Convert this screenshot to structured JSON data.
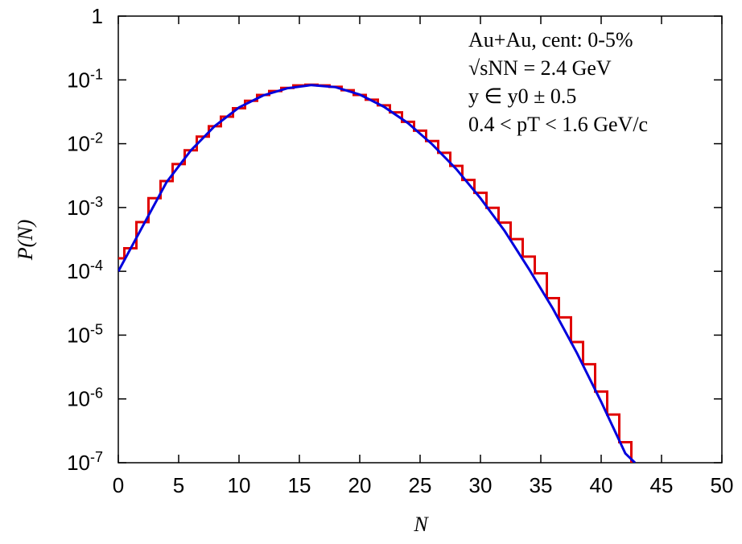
{
  "chart_data": {
    "type": "histogram",
    "xlabel": "N",
    "ylabel": "P(N)",
    "annotations": [
      "Au+Au, cent: 0-5%",
      "√sNN = 2.4 GeV",
      "y ∈ y0 ± 0.5",
      "0.4 < pT < 1.6 GeV/c"
    ],
    "xlim": [
      0,
      50
    ],
    "xticks": [
      0,
      5,
      10,
      15,
      20,
      25,
      30,
      35,
      40,
      45,
      50
    ],
    "ylim": [
      1e-07,
      1
    ],
    "log_y": true,
    "yticks": [
      1,
      {
        "value": 0.1,
        "label": "10",
        "exponent": "-1"
      },
      {
        "value": 0.01,
        "label": "10",
        "exponent": "-2"
      },
      {
        "value": 0.001,
        "label": "10",
        "exponent": "-3"
      },
      {
        "value": 0.0001,
        "label": "10",
        "exponent": "-4"
      },
      {
        "value": 1e-05,
        "label": "10",
        "exponent": "-5"
      },
      {
        "value": 1e-06,
        "label": "10",
        "exponent": "-6"
      },
      {
        "value": 1e-07,
        "label": "10",
        "exponent": "-7"
      }
    ],
    "histogram": {
      "color": "#e00000",
      "bins": [
        -0.5,
        0.5,
        1.5,
        2.5,
        3.5,
        4.5,
        5.5,
        6.5,
        7.5,
        8.5,
        9.5,
        10.5,
        11.5,
        12.5,
        13.5,
        14.5,
        15.5,
        16.5,
        17.5,
        18.5,
        19.5,
        20.5,
        21.5,
        22.5,
        23.5,
        24.5,
        25.5,
        26.5,
        27.5,
        28.5,
        29.5,
        30.5,
        31.5,
        32.5,
        33.5,
        34.5,
        35.5,
        36.5,
        37.5,
        38.5,
        39.5,
        40.5,
        41.5,
        42.5
      ],
      "values": [
        0.00016,
        0.00023,
        0.00059,
        0.0014,
        0.0026,
        0.0048,
        0.0079,
        0.0129,
        0.0188,
        0.0265,
        0.036,
        0.047,
        0.058,
        0.067,
        0.075,
        0.082,
        0.084,
        0.082,
        0.078,
        0.069,
        0.058,
        0.049,
        0.04,
        0.031,
        0.022,
        0.016,
        0.011,
        0.0072,
        0.0045,
        0.0027,
        0.0017,
        0.00099,
        0.00058,
        0.00032,
        0.00017,
        9.3e-05,
        3.8e-05,
        1.9e-05,
        7.8e-06,
        3.5e-06,
        1.3e-06,
        5.7e-07,
        2.1e-07
      ]
    },
    "curve": {
      "color": "#0000dd",
      "x": [
        0,
        2,
        4,
        6,
        8,
        10,
        12,
        14,
        16,
        18,
        20,
        22,
        24,
        26,
        28,
        30,
        32,
        34,
        36,
        38,
        40,
        42,
        42.8
      ],
      "values": [
        0.0001,
        0.0005,
        0.0025,
        0.0078,
        0.019,
        0.037,
        0.057,
        0.074,
        0.083,
        0.077,
        0.059,
        0.038,
        0.021,
        0.0098,
        0.004,
        0.0014,
        0.00043,
        0.00011,
        2.6e-05,
        5.2e-06,
        9e-07,
        1.4e-07,
        1e-07
      ]
    }
  }
}
